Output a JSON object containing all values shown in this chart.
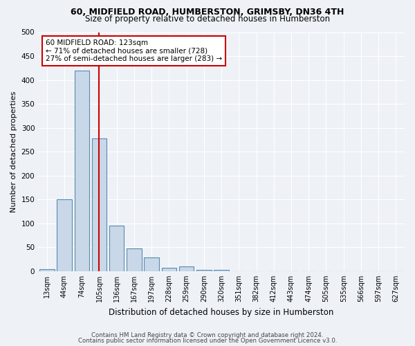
{
  "title1": "60, MIDFIELD ROAD, HUMBERSTON, GRIMSBY, DN36 4TH",
  "title2": "Size of property relative to detached houses in Humberston",
  "xlabel": "Distribution of detached houses by size in Humberston",
  "ylabel": "Number of detached properties",
  "categories": [
    "13sqm",
    "44sqm",
    "74sqm",
    "105sqm",
    "136sqm",
    "167sqm",
    "197sqm",
    "228sqm",
    "259sqm",
    "290sqm",
    "320sqm",
    "351sqm",
    "382sqm",
    "412sqm",
    "443sqm",
    "474sqm",
    "505sqm",
    "535sqm",
    "566sqm",
    "597sqm",
    "627sqm"
  ],
  "values": [
    4,
    150,
    420,
    278,
    95,
    48,
    29,
    7,
    10,
    3,
    3,
    0,
    0,
    0,
    0,
    0,
    0,
    0,
    0,
    0,
    0
  ],
  "bar_color": "#c8d8e8",
  "bar_edge_color": "#5a8ab0",
  "property_line_x": 3.0,
  "annotation_title": "60 MIDFIELD ROAD: 123sqm",
  "annotation_line1": "← 71% of detached houses are smaller (728)",
  "annotation_line2": "27% of semi-detached houses are larger (283) →",
  "annotation_box_color": "#ffffff",
  "annotation_box_edge": "#cc0000",
  "footer1": "Contains HM Land Registry data © Crown copyright and database right 2024.",
  "footer2": "Contains public sector information licensed under the Open Government Licence v3.0.",
  "ylim": [
    0,
    500
  ],
  "yticks": [
    0,
    50,
    100,
    150,
    200,
    250,
    300,
    350,
    400,
    450,
    500
  ],
  "background_color": "#eef2f7",
  "grid_color": "#ffffff",
  "line_color": "#cc0000",
  "title1_fontsize": 9,
  "title2_fontsize": 8.5
}
